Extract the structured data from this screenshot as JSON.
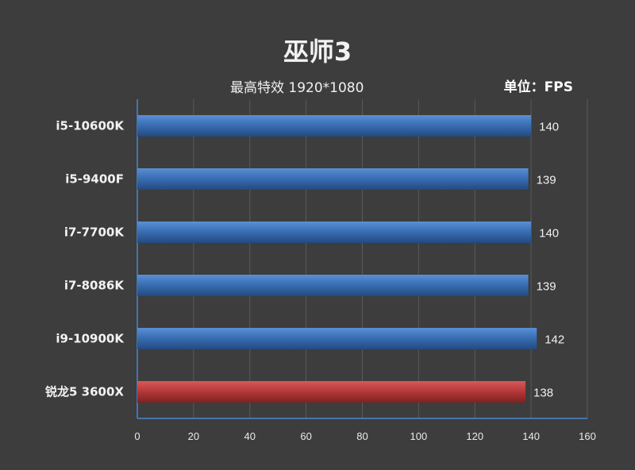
{
  "chart_data": {
    "type": "bar",
    "orientation": "horizontal",
    "title": "巫师3",
    "subtitle": "最高特效 1920*1080",
    "unit_label": "单位：FPS",
    "categories": [
      "i5-10600K",
      "i5-9400F",
      "i7-7700K",
      "i7-8086K",
      "i9-10900K",
      "锐龙5 3600X"
    ],
    "values": [
      140,
      139,
      140,
      139,
      142,
      138
    ],
    "bar_colors": [
      "#3a6fb5",
      "#3a6fb5",
      "#3a6fb5",
      "#3a6fb5",
      "#3a6fb5",
      "#b83a3a"
    ],
    "xlim": [
      0,
      160
    ],
    "x_ticks": [
      0,
      20,
      40,
      60,
      80,
      100,
      120,
      140,
      160
    ],
    "grid": true,
    "legend": "none"
  }
}
